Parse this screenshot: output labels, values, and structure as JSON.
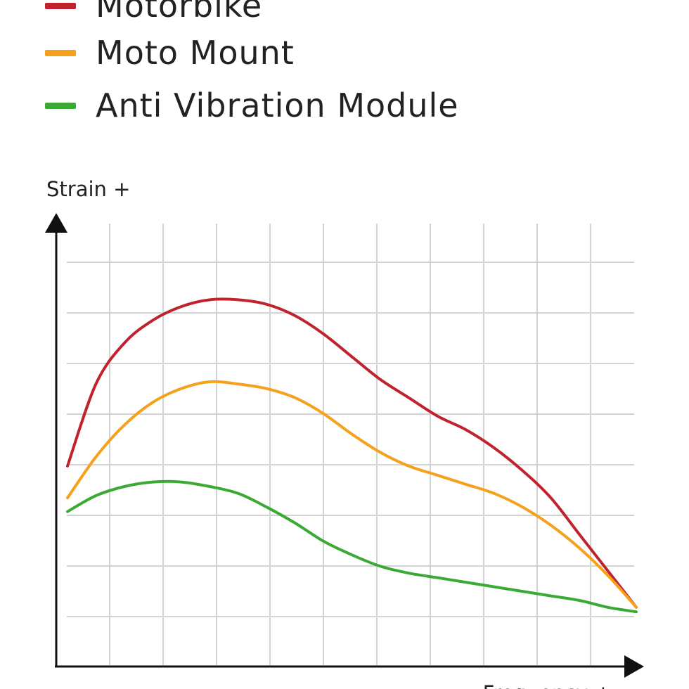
{
  "chart_data": {
    "type": "line",
    "xlabel": "Frequency +",
    "ylabel": "Strain +",
    "xlim": [
      0,
      100
    ],
    "ylim": [
      0,
      100
    ],
    "grid": true,
    "legend": "top-left",
    "x": [
      0,
      5,
      10,
      15,
      20,
      25,
      30,
      35,
      40,
      45,
      50,
      55,
      60,
      65,
      70,
      75,
      80,
      85,
      90,
      95,
      100
    ],
    "series": [
      {
        "name": "Motorbike",
        "color": "#c0222e",
        "values": [
          44,
          62,
          71,
          76,
          79,
          80.5,
          80.5,
          79.5,
          77,
          73,
          68,
          63,
          59,
          55,
          52,
          48,
          43,
          37,
          29,
          21,
          13
        ]
      },
      {
        "name": "Moto Mount",
        "color": "#f5a11b",
        "values": [
          37,
          46,
          53,
          58,
          61,
          62.5,
          62,
          61,
          59,
          55.5,
          51,
          47,
          44,
          42,
          40,
          38,
          35,
          31,
          26,
          20,
          13
        ]
      },
      {
        "name": "Anti Vibration Module",
        "color": "#3aaa35",
        "values": [
          34,
          37.5,
          39.5,
          40.5,
          40.5,
          39.5,
          38,
          35,
          31.5,
          27.5,
          24.5,
          22,
          20.5,
          19.5,
          18.5,
          17.5,
          16.5,
          15.5,
          14.5,
          13,
          12
        ]
      }
    ]
  }
}
